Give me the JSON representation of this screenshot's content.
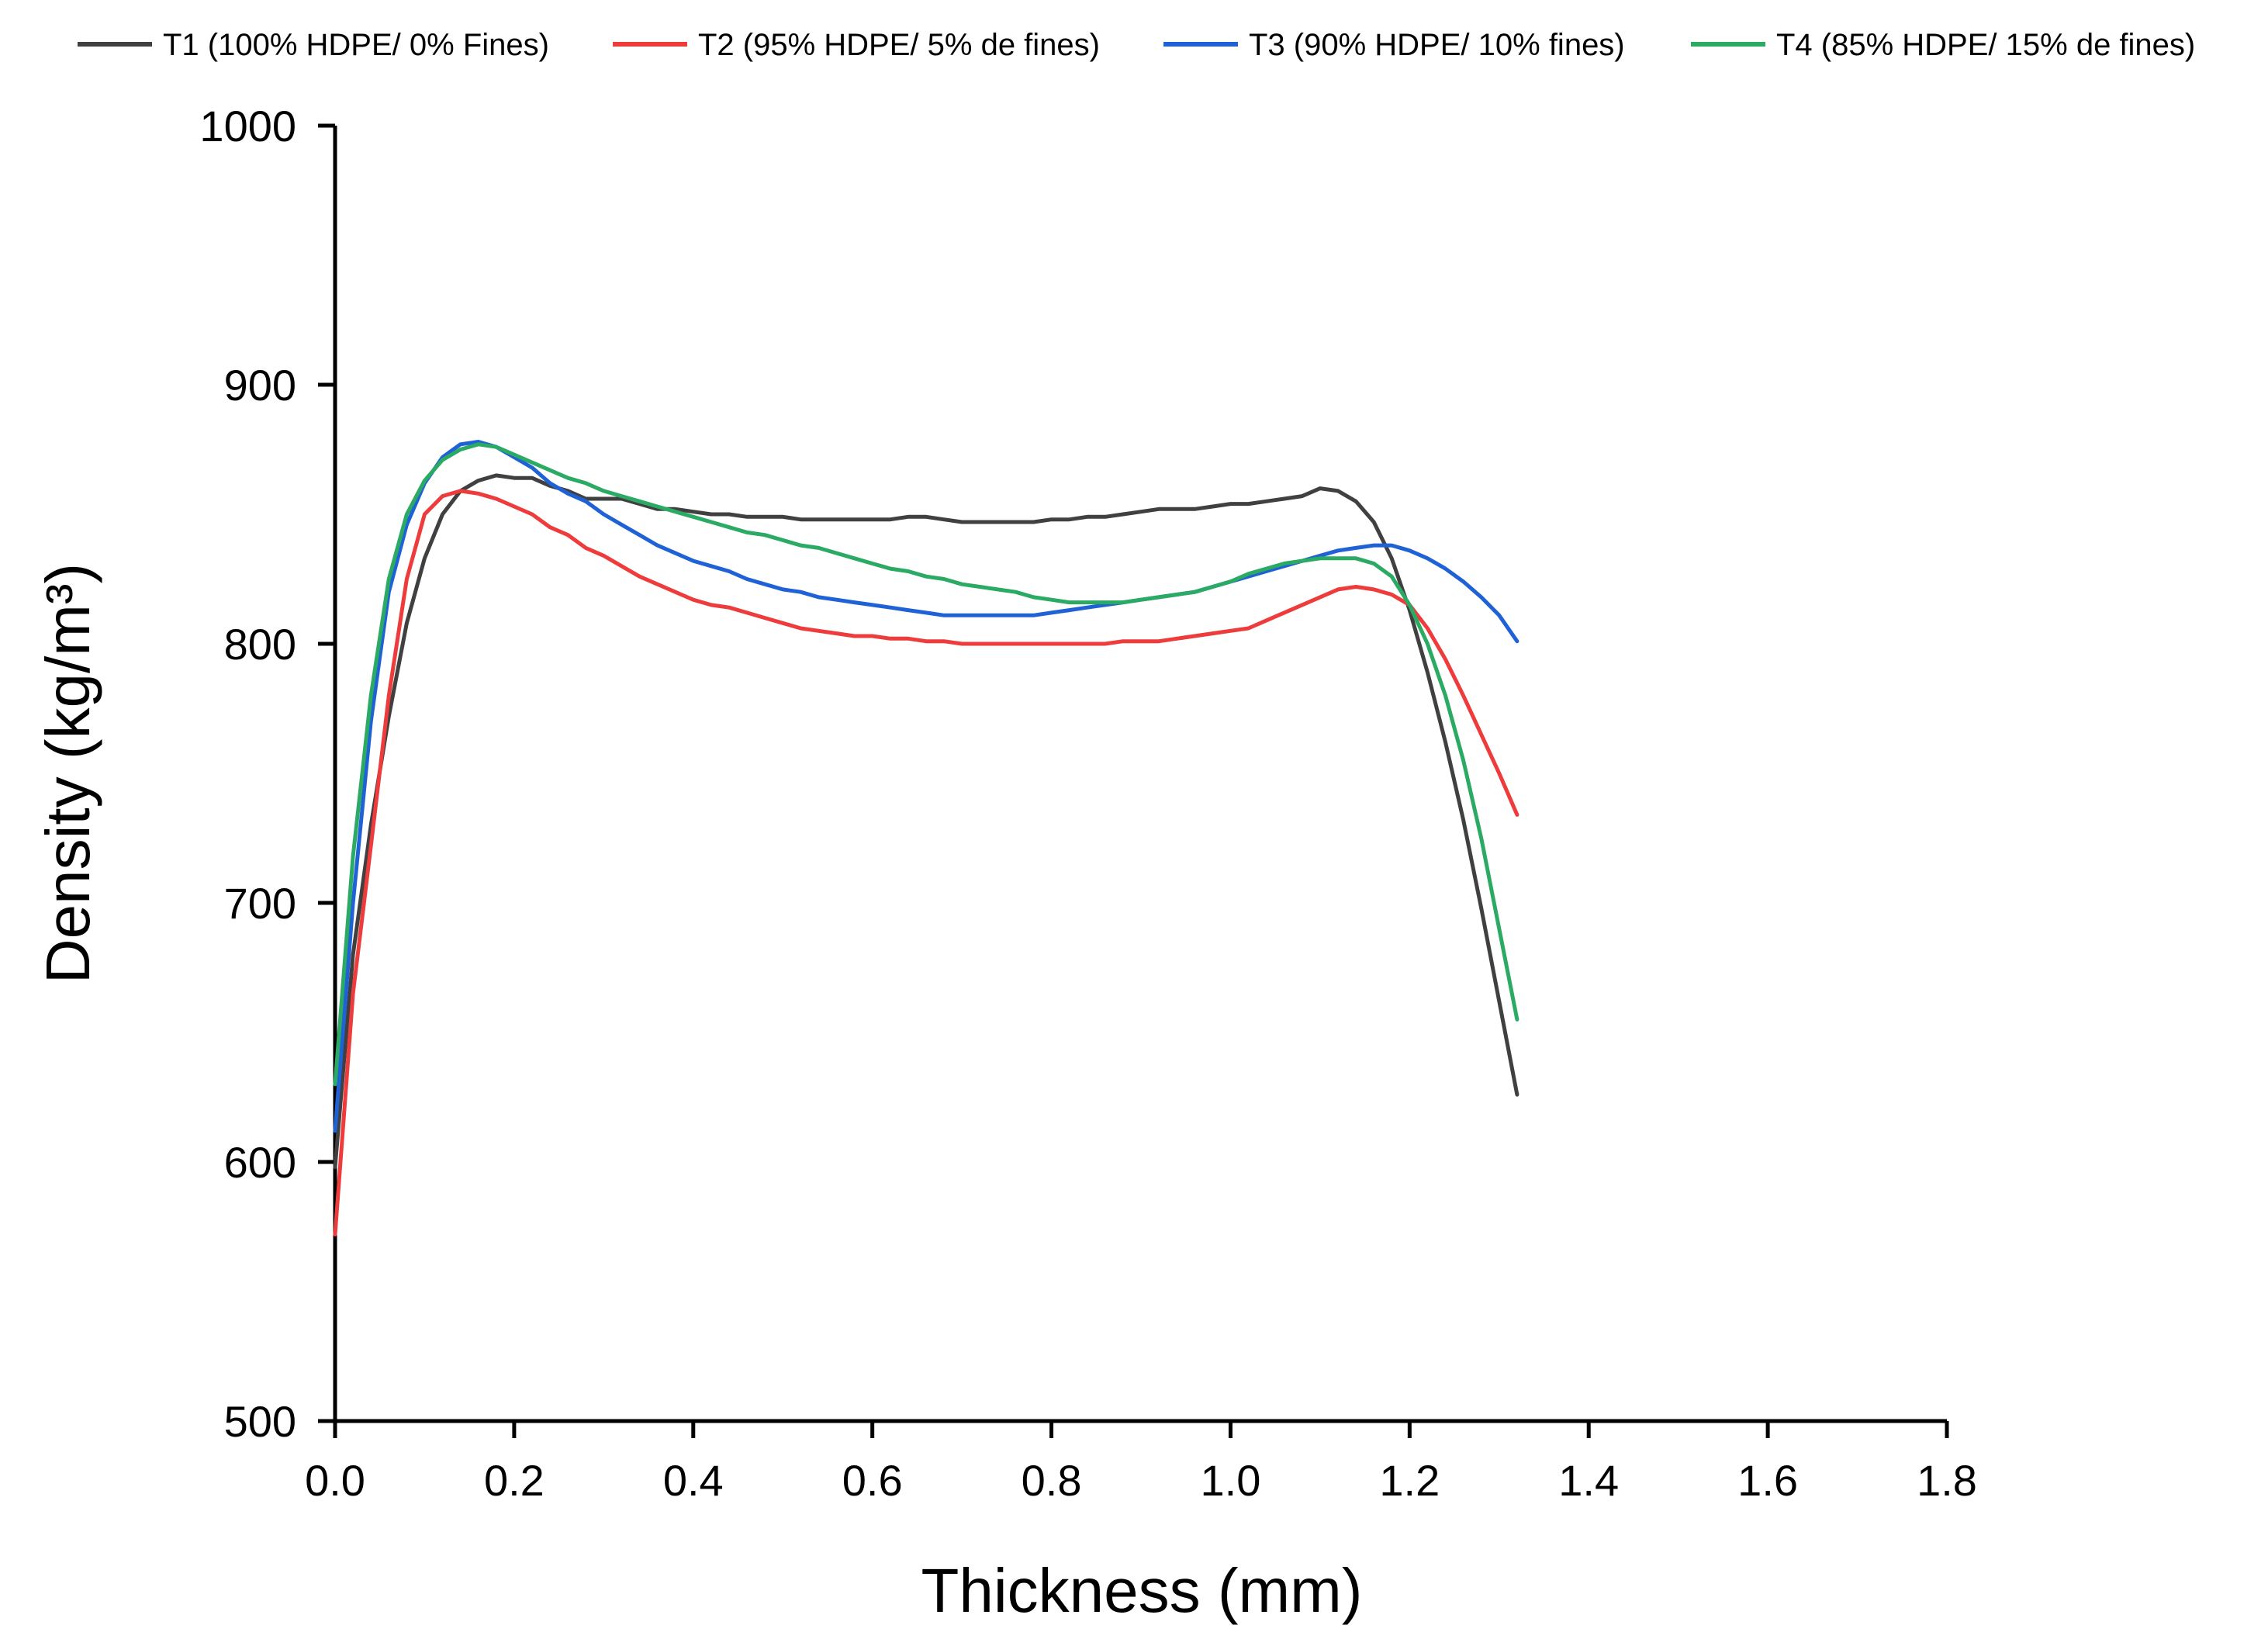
{
  "chart_data": {
    "type": "line",
    "title": "",
    "xlabel": "Thickness (mm)",
    "ylabel": "Density (kg/m³)",
    "xlim": [
      0,
      1.8
    ],
    "ylim": [
      500,
      1000
    ],
    "xticks": [
      "0.0",
      "0.2",
      "0.4",
      "0.6",
      "0.8",
      "1.0",
      "1.2",
      "1.4",
      "1.6",
      "1.8"
    ],
    "yticks": [
      "500",
      "600",
      "700",
      "800",
      "900",
      "1000"
    ],
    "grid": false,
    "legend_position": "top",
    "series": [
      {
        "name": "T1 (100% HDPE/ 0% Fines)",
        "color": "#404040",
        "x": [
          0,
          0.02,
          0.04,
          0.06,
          0.08,
          0.1,
          0.12,
          0.14,
          0.16,
          0.18,
          0.2,
          0.22,
          0.24,
          0.26,
          0.28,
          0.3,
          0.32,
          0.34,
          0.36,
          0.38,
          0.4,
          0.42,
          0.44,
          0.46,
          0.48,
          0.5,
          0.52,
          0.54,
          0.56,
          0.58,
          0.6,
          0.62,
          0.64,
          0.66,
          0.68,
          0.7,
          0.72,
          0.74,
          0.76,
          0.78,
          0.8,
          0.82,
          0.84,
          0.86,
          0.88,
          0.9,
          0.92,
          0.94,
          0.96,
          0.98,
          1.0,
          1.02,
          1.04,
          1.06,
          1.08,
          1.1,
          1.12,
          1.14,
          1.16,
          1.18,
          1.2,
          1.22,
          1.24,
          1.26,
          1.28,
          1.3,
          1.32
        ],
        "values": [
          598,
          680,
          730,
          772,
          808,
          833,
          850,
          859,
          863,
          865,
          864,
          864,
          861,
          859,
          856,
          856,
          856,
          854,
          852,
          852,
          851,
          850,
          850,
          849,
          849,
          849,
          848,
          848,
          848,
          848,
          848,
          848,
          849,
          849,
          848,
          847,
          847,
          847,
          847,
          847,
          848,
          848,
          849,
          849,
          850,
          851,
          852,
          852,
          852,
          853,
          854,
          854,
          855,
          856,
          857,
          860,
          859,
          855,
          847,
          833,
          813,
          789,
          762,
          732,
          698,
          662,
          626
        ]
      },
      {
        "name": "T2 (95% HDPE/ 5% de fines)",
        "color": "#ee3b3b",
        "x": [
          0,
          0.02,
          0.04,
          0.06,
          0.08,
          0.1,
          0.12,
          0.14,
          0.16,
          0.18,
          0.2,
          0.22,
          0.24,
          0.26,
          0.28,
          0.3,
          0.32,
          0.34,
          0.36,
          0.38,
          0.4,
          0.42,
          0.44,
          0.46,
          0.48,
          0.5,
          0.52,
          0.54,
          0.56,
          0.58,
          0.6,
          0.62,
          0.64,
          0.66,
          0.68,
          0.7,
          0.72,
          0.74,
          0.76,
          0.78,
          0.8,
          0.82,
          0.84,
          0.86,
          0.88,
          0.9,
          0.92,
          0.94,
          0.96,
          0.98,
          1.0,
          1.02,
          1.04,
          1.06,
          1.08,
          1.1,
          1.12,
          1.14,
          1.16,
          1.18,
          1.2,
          1.22,
          1.24,
          1.26,
          1.28,
          1.3,
          1.32
        ],
        "values": [
          572,
          665,
          722,
          780,
          825,
          850,
          857,
          859,
          858,
          856,
          853,
          850,
          845,
          842,
          837,
          834,
          830,
          826,
          823,
          820,
          817,
          815,
          814,
          812,
          810,
          808,
          806,
          805,
          804,
          803,
          803,
          802,
          802,
          801,
          801,
          800,
          800,
          800,
          800,
          800,
          800,
          800,
          800,
          800,
          801,
          801,
          801,
          802,
          803,
          804,
          805,
          806,
          809,
          812,
          815,
          818,
          821,
          822,
          821,
          819,
          815,
          806,
          794,
          780,
          765,
          750,
          734
        ]
      },
      {
        "name": "T3 (90% HDPE/ 10% fines)",
        "color": "#1f62d6",
        "x": [
          0,
          0.02,
          0.04,
          0.06,
          0.08,
          0.1,
          0.12,
          0.14,
          0.16,
          0.18,
          0.2,
          0.22,
          0.24,
          0.26,
          0.28,
          0.3,
          0.32,
          0.34,
          0.36,
          0.38,
          0.4,
          0.42,
          0.44,
          0.46,
          0.48,
          0.5,
          0.52,
          0.54,
          0.56,
          0.58,
          0.6,
          0.62,
          0.64,
          0.66,
          0.68,
          0.7,
          0.72,
          0.74,
          0.76,
          0.78,
          0.8,
          0.82,
          0.84,
          0.86,
          0.88,
          0.9,
          0.92,
          0.94,
          0.96,
          0.98,
          1.0,
          1.02,
          1.04,
          1.06,
          1.08,
          1.1,
          1.12,
          1.14,
          1.16,
          1.18,
          1.2,
          1.22,
          1.24,
          1.26,
          1.28,
          1.3,
          1.32
        ],
        "values": [
          612,
          700,
          770,
          820,
          846,
          862,
          872,
          877,
          878,
          876,
          872,
          868,
          862,
          858,
          855,
          850,
          846,
          842,
          838,
          835,
          832,
          830,
          828,
          825,
          823,
          821,
          820,
          818,
          817,
          816,
          815,
          814,
          813,
          812,
          811,
          811,
          811,
          811,
          811,
          811,
          812,
          813,
          814,
          815,
          816,
          817,
          818,
          819,
          820,
          822,
          824,
          826,
          828,
          830,
          832,
          834,
          836,
          837,
          838,
          838,
          836,
          833,
          829,
          824,
          818,
          811,
          801
        ]
      },
      {
        "name": "T4 (85% HDPE/ 15% de fines)",
        "color": "#2aaa63",
        "x": [
          0,
          0.02,
          0.04,
          0.06,
          0.08,
          0.1,
          0.12,
          0.14,
          0.16,
          0.18,
          0.2,
          0.22,
          0.24,
          0.26,
          0.28,
          0.3,
          0.32,
          0.34,
          0.36,
          0.38,
          0.4,
          0.42,
          0.44,
          0.46,
          0.48,
          0.5,
          0.52,
          0.54,
          0.56,
          0.58,
          0.6,
          0.62,
          0.64,
          0.66,
          0.68,
          0.7,
          0.72,
          0.74,
          0.76,
          0.78,
          0.8,
          0.82,
          0.84,
          0.86,
          0.88,
          0.9,
          0.92,
          0.94,
          0.96,
          0.98,
          1.0,
          1.02,
          1.04,
          1.06,
          1.08,
          1.1,
          1.12,
          1.14,
          1.16,
          1.18,
          1.2,
          1.22,
          1.24,
          1.26,
          1.28,
          1.3,
          1.32
        ],
        "values": [
          630,
          718,
          780,
          825,
          850,
          863,
          871,
          875,
          877,
          876,
          873,
          870,
          867,
          864,
          862,
          859,
          857,
          855,
          853,
          851,
          849,
          847,
          845,
          843,
          842,
          840,
          838,
          837,
          835,
          833,
          831,
          829,
          828,
          826,
          825,
          823,
          822,
          821,
          820,
          818,
          817,
          816,
          816,
          816,
          816,
          817,
          818,
          819,
          820,
          822,
          824,
          827,
          829,
          831,
          832,
          833,
          833,
          833,
          831,
          826,
          815,
          800,
          780,
          755,
          725,
          690,
          655
        ]
      }
    ]
  }
}
